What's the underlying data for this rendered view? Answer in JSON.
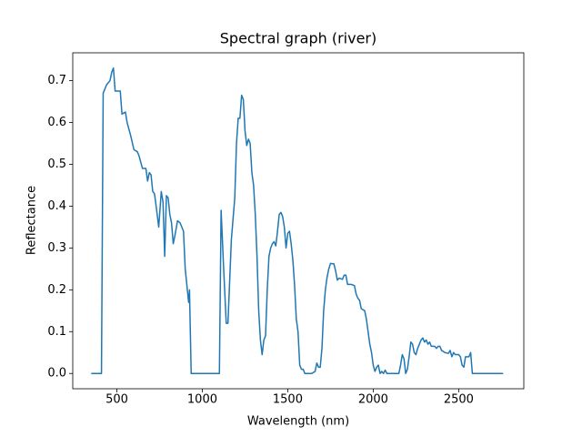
{
  "chart_data": {
    "type": "line",
    "title": "Spectral graph (river)",
    "xlabel": "Wavelength (nm)",
    "ylabel": "Reflectance",
    "color": "#1f77b4",
    "xlim": [
      242,
      2881
    ],
    "ylim": [
      -0.0365,
      0.7665
    ],
    "xticks": [
      500,
      1000,
      1500,
      2000,
      2500
    ],
    "yticks": [
      {
        "value": 0,
        "label": "0.0"
      },
      0.1,
      0.2,
      0.3,
      0.4,
      0.5,
      0.6,
      0.7
    ],
    "x": [
      350,
      410,
      420,
      440,
      460,
      470,
      480,
      490,
      520,
      530,
      550,
      560,
      580,
      600,
      620,
      630,
      650,
      670,
      680,
      690,
      700,
      710,
      720,
      730,
      745,
      760,
      770,
      780,
      790,
      800,
      810,
      820,
      830,
      840,
      855,
      870,
      880,
      890,
      900,
      910,
      920,
      925,
      935,
      1100,
      1110,
      1125,
      1140,
      1150,
      1170,
      1190,
      1200,
      1210,
      1220,
      1230,
      1240,
      1250,
      1260,
      1270,
      1280,
      1290,
      1300,
      1310,
      1320,
      1330,
      1340,
      1350,
      1360,
      1370,
      1380,
      1390,
      1400,
      1410,
      1420,
      1430,
      1440,
      1450,
      1460,
      1470,
      1480,
      1490,
      1500,
      1510,
      1520,
      1530,
      1540,
      1550,
      1560,
      1570,
      1580,
      1590,
      1600,
      1640,
      1660,
      1670,
      1680,
      1690,
      1700,
      1710,
      1720,
      1730,
      1740,
      1750,
      1770,
      1780,
      1790,
      1800,
      1820,
      1830,
      1840,
      1850,
      1870,
      1890,
      1900,
      1910,
      1920,
      1930,
      1950,
      1960,
      1970,
      1980,
      1990,
      2000,
      2010,
      2020,
      2030,
      2040,
      2050,
      2060,
      2070,
      2080,
      2150,
      2160,
      2170,
      2180,
      2190,
      2200,
      2210,
      2220,
      2230,
      2240,
      2250,
      2260,
      2270,
      2280,
      2290,
      2300,
      2310,
      2320,
      2330,
      2340,
      2360,
      2370,
      2380,
      2390,
      2400,
      2420,
      2440,
      2450,
      2460,
      2470,
      2480,
      2500,
      2510,
      2520,
      2530,
      2540,
      2560,
      2570,
      2580,
      2760
    ],
    "values": [
      0,
      0,
      0.67,
      0.69,
      0.7,
      0.72,
      0.73,
      0.675,
      0.675,
      0.62,
      0.625,
      0.6,
      0.57,
      0.535,
      0.53,
      0.52,
      0.49,
      0.49,
      0.46,
      0.48,
      0.475,
      0.435,
      0.43,
      0.4,
      0.35,
      0.435,
      0.41,
      0.28,
      0.425,
      0.42,
      0.38,
      0.36,
      0.31,
      0.33,
      0.365,
      0.36,
      0.35,
      0.34,
      0.25,
      0.21,
      0.17,
      0.2,
      0,
      0,
      0.39,
      0.25,
      0.12,
      0.12,
      0.32,
      0.42,
      0.55,
      0.61,
      0.61,
      0.665,
      0.655,
      0.58,
      0.545,
      0.56,
      0.55,
      0.48,
      0.45,
      0.38,
      0.28,
      0.15,
      0.08,
      0.045,
      0.08,
      0.09,
      0.2,
      0.28,
      0.3,
      0.31,
      0.315,
      0.305,
      0.34,
      0.38,
      0.385,
      0.375,
      0.35,
      0.3,
      0.335,
      0.34,
      0.31,
      0.27,
      0.21,
      0.13,
      0.1,
      0.02,
      0.01,
      0.01,
      0,
      0,
      0.005,
      0.025,
      0.015,
      0.015,
      0.06,
      0.15,
      0.2,
      0.23,
      0.25,
      0.263,
      0.262,
      0.245,
      0.223,
      0.228,
      0.225,
      0.235,
      0.235,
      0.213,
      0.213,
      0.21,
      0.19,
      0.18,
      0.175,
      0.155,
      0.15,
      0.13,
      0.1,
      0.07,
      0.05,
      0.02,
      0.005,
      0.015,
      0.02,
      0,
      0.005,
      0,
      0.008,
      0,
      0,
      0.02,
      0.045,
      0.035,
      0,
      0.01,
      0.04,
      0.075,
      0.07,
      0.05,
      0.045,
      0.06,
      0.07,
      0.08,
      0.085,
      0.075,
      0.08,
      0.07,
      0.075,
      0.065,
      0.065,
      0.06,
      0.065,
      0.065,
      0.055,
      0.05,
      0.048,
      0.055,
      0.04,
      0.05,
      0.045,
      0.045,
      0.04,
      0.02,
      0.015,
      0.04,
      0.04,
      0.05,
      0,
      0
    ]
  }
}
